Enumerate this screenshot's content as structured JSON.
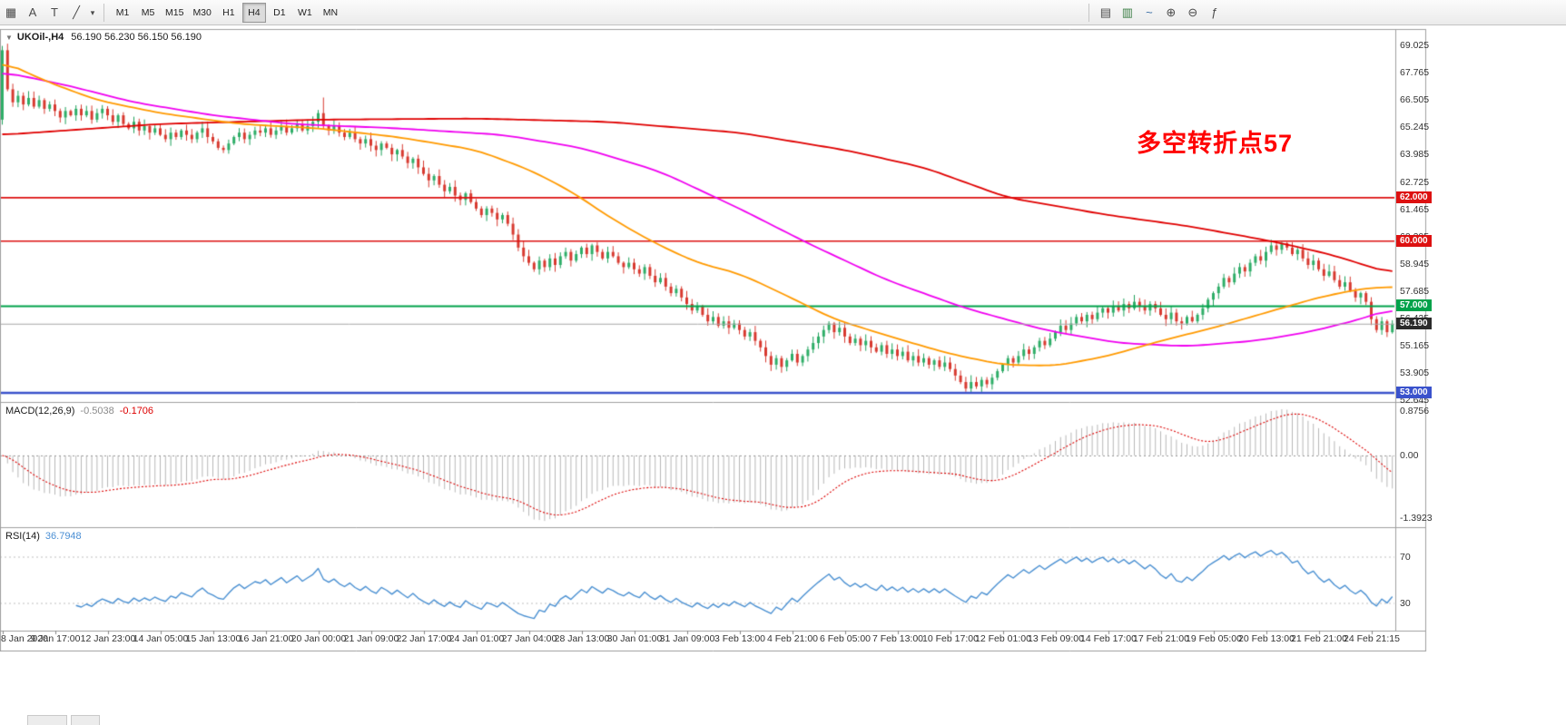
{
  "toolbar": {
    "left_icons": [
      {
        "name": "grid-icon",
        "glyph": "▦"
      },
      {
        "name": "text-tool-icon",
        "glyph": "A"
      },
      {
        "name": "text-label-tool-icon",
        "glyph": "T"
      },
      {
        "name": "drawing-tools-icon",
        "glyph": "╱"
      },
      {
        "name": "dropdown-caret-icon",
        "glyph": "▾"
      }
    ],
    "timeframes": {
      "items": [
        "M1",
        "M5",
        "M15",
        "M30",
        "H1",
        "H4",
        "D1",
        "W1",
        "MN"
      ],
      "active": "H4"
    },
    "right_icons": [
      {
        "name": "bar-chart-icon",
        "glyph": "▤",
        "color": "#4a4a4a"
      },
      {
        "name": "candlestick-chart-icon",
        "glyph": "▥",
        "color": "#3a7d44"
      },
      {
        "name": "line-chart-icon",
        "glyph": "~",
        "color": "#3a6ea5"
      },
      {
        "name": "zoom-in-icon",
        "glyph": "⊕",
        "color": "#4a4a4a"
      },
      {
        "name": "zoom-out-icon",
        "glyph": "⊖",
        "color": "#4a4a4a"
      },
      {
        "name": "indicators-icon",
        "glyph": "ƒ",
        "color": "#4a4a4a"
      }
    ]
  },
  "chart_header": {
    "collapse": "▼",
    "symbol_period": "UKOil-,H4",
    "ohlc": "56.190 56.230 56.150 56.190"
  },
  "macd_panel": {
    "title": "MACD(12,26,9)",
    "value_main": "-0.5038",
    "value_signal": "-0.1706",
    "axis_max": "0.8756",
    "axis_zero": "0.00",
    "axis_min": "-1.3923"
  },
  "rsi_panel": {
    "title": "RSI(14)",
    "value": "36.7948",
    "level_top": "70",
    "level_bottom": "30"
  },
  "chart_data": {
    "type": "candlestick",
    "symbol": "UKOil-",
    "timeframe": "H4",
    "ohlc_current": {
      "open": 56.19,
      "high": 56.23,
      "low": 56.15,
      "close": 56.19
    },
    "ylim": [
      52.645,
      69.025
    ],
    "y_tick_labels": [
      "69.025",
      "67.765",
      "66.505",
      "65.245",
      "63.985",
      "62.725",
      "61.465",
      "60.205",
      "58.945",
      "57.685",
      "56.425",
      "55.165",
      "53.905",
      "52.645"
    ],
    "x_tick_labels": [
      "8 Jan 2020",
      "9 Jan 17:00",
      "12 Jan 23:00",
      "14 Jan 05:00",
      "15 Jan 13:00",
      "16 Jan 21:00",
      "20 Jan 00:00",
      "21 Jan 09:00",
      "22 Jan 17:00",
      "24 Jan 01:00",
      "27 Jan 04:00",
      "28 Jan 13:00",
      "30 Jan 01:00",
      "31 Jan 09:00",
      "3 Feb 13:00",
      "4 Feb 21:00",
      "6 Feb 05:00",
      "7 Feb 13:00",
      "10 Feb 17:00",
      "12 Feb 01:00",
      "13 Feb 09:00",
      "14 Feb 17:00",
      "17 Feb 21:00",
      "19 Feb 05:00",
      "20 Feb 13:00",
      "21 Feb 21:00",
      "24 Feb 21:15"
    ],
    "bars_per_label": 10,
    "first_open": 65.6,
    "closes": [
      68.8,
      67.0,
      66.4,
      66.7,
      66.3,
      66.6,
      66.2,
      66.5,
      66.1,
      66.3,
      66.0,
      65.7,
      66.0,
      65.8,
      66.1,
      65.8,
      66.0,
      65.6,
      65.9,
      66.1,
      65.8,
      65.5,
      65.8,
      65.4,
      65.2,
      65.5,
      65.1,
      65.3,
      65.0,
      65.2,
      64.9,
      64.7,
      65.0,
      64.8,
      65.1,
      64.9,
      64.7,
      65.0,
      65.2,
      64.8,
      64.6,
      64.3,
      64.2,
      64.5,
      64.8,
      65.0,
      64.7,
      64.9,
      65.1,
      65.0,
      65.2,
      64.9,
      65.1,
      65.3,
      65.0,
      65.2,
      65.4,
      65.1,
      65.3,
      65.5,
      65.9,
      65.3,
      65.1,
      65.3,
      65.0,
      64.8,
      65.0,
      64.7,
      64.5,
      64.7,
      64.4,
      64.2,
      64.5,
      64.3,
      64.0,
      64.2,
      63.9,
      63.6,
      63.8,
      63.4,
      63.1,
      62.8,
      63.0,
      62.6,
      62.3,
      62.5,
      62.1,
      61.9,
      62.2,
      61.8,
      61.5,
      61.2,
      61.5,
      61.3,
      61.0,
      61.2,
      60.8,
      60.3,
      59.7,
      59.3,
      59.0,
      58.7,
      59.1,
      58.8,
      59.2,
      58.9,
      59.3,
      59.5,
      59.1,
      59.4,
      59.7,
      59.4,
      59.8,
      59.5,
      59.2,
      59.5,
      59.3,
      59.0,
      58.8,
      59.0,
      58.7,
      58.5,
      58.8,
      58.4,
      58.1,
      58.3,
      57.9,
      57.6,
      57.8,
      57.4,
      57.1,
      56.8,
      57.0,
      56.6,
      56.3,
      56.5,
      56.1,
      56.3,
      56.0,
      56.2,
      55.9,
      55.6,
      55.8,
      55.4,
      55.1,
      54.7,
      54.3,
      54.6,
      54.2,
      54.5,
      54.8,
      54.4,
      54.7,
      55.0,
      55.3,
      55.6,
      55.9,
      56.2,
      55.8,
      56.0,
      55.6,
      55.3,
      55.5,
      55.2,
      55.4,
      55.1,
      54.9,
      55.2,
      54.8,
      55.0,
      54.7,
      54.9,
      54.5,
      54.7,
      54.4,
      54.6,
      54.3,
      54.5,
      54.2,
      54.4,
      54.1,
      53.8,
      53.5,
      53.2,
      53.5,
      53.3,
      53.6,
      53.4,
      53.7,
      54.0,
      54.3,
      54.6,
      54.4,
      54.7,
      55.0,
      54.8,
      55.1,
      55.4,
      55.2,
      55.5,
      55.8,
      56.1,
      55.9,
      56.2,
      56.5,
      56.3,
      56.6,
      56.4,
      56.7,
      56.9,
      56.7,
      57.0,
      56.8,
      57.1,
      56.9,
      57.2,
      57.0,
      56.8,
      57.1,
      56.9,
      56.6,
      56.4,
      56.7,
      56.3,
      56.2,
      56.5,
      56.3,
      56.6,
      56.9,
      57.3,
      57.6,
      57.9,
      58.3,
      58.1,
      58.5,
      58.8,
      58.6,
      59.0,
      59.3,
      59.1,
      59.5,
      59.8,
      59.6,
      59.9,
      59.7,
      59.4,
      59.6,
      59.2,
      58.9,
      59.1,
      58.7,
      58.4,
      58.6,
      58.2,
      57.9,
      58.1,
      57.7,
      57.4,
      57.6,
      57.2,
      56.4,
      55.9,
      56.3,
      55.8,
      56.19
    ],
    "wick_overrides": {
      "0": {
        "h": 69.0
      },
      "61": {
        "h": 66.62
      },
      "183": {
        "l": 53.05
      },
      "243": {
        "h": 59.97
      }
    },
    "moving_averages": [
      {
        "name": "slow-red-ma",
        "color": "#e00000",
        "anchors": [
          [
            0,
            64.9
          ],
          [
            30,
            65.4
          ],
          [
            60,
            65.6
          ],
          [
            90,
            65.65
          ],
          [
            115,
            65.5
          ],
          [
            140,
            65.0
          ],
          [
            160,
            64.2
          ],
          [
            175,
            63.4
          ],
          [
            191,
            62.0
          ],
          [
            210,
            61.2
          ],
          [
            225,
            60.7
          ],
          [
            241,
            60.0
          ],
          [
            252,
            59.4
          ],
          [
            264,
            58.5
          ]
        ]
      },
      {
        "name": "mid-magenta-ma",
        "color": "#f000f0",
        "anchors": [
          [
            0,
            67.8
          ],
          [
            12,
            67.2
          ],
          [
            25,
            66.4
          ],
          [
            40,
            65.8
          ],
          [
            55,
            65.4
          ],
          [
            75,
            65.2
          ],
          [
            95,
            64.9
          ],
          [
            110,
            64.3
          ],
          [
            125,
            63.2
          ],
          [
            140,
            61.5
          ],
          [
            153,
            59.9
          ],
          [
            168,
            58.2
          ],
          [
            183,
            56.9
          ],
          [
            198,
            55.9
          ],
          [
            212,
            55.3
          ],
          [
            225,
            55.15
          ],
          [
            238,
            55.4
          ],
          [
            248,
            55.8
          ],
          [
            258,
            56.4
          ],
          [
            264,
            56.9
          ]
        ]
      },
      {
        "name": "fast-orange-ma",
        "color": "#ff9a00",
        "anchors": [
          [
            0,
            68.3
          ],
          [
            8,
            67.4
          ],
          [
            18,
            66.5
          ],
          [
            30,
            65.9
          ],
          [
            45,
            65.4
          ],
          [
            60,
            65.2
          ],
          [
            75,
            64.8
          ],
          [
            90,
            64.2
          ],
          [
            100,
            63.3
          ],
          [
            108,
            62.3
          ],
          [
            116,
            61.0
          ],
          [
            124,
            59.9
          ],
          [
            132,
            59.0
          ],
          [
            140,
            58.5
          ],
          [
            148,
            57.6
          ],
          [
            158,
            56.4
          ],
          [
            170,
            55.5
          ],
          [
            180,
            54.8
          ],
          [
            190,
            54.3
          ],
          [
            200,
            54.25
          ],
          [
            210,
            54.7
          ],
          [
            220,
            55.4
          ],
          [
            230,
            56.0
          ],
          [
            240,
            56.7
          ],
          [
            250,
            57.4
          ],
          [
            258,
            57.8
          ],
          [
            264,
            57.9
          ]
        ]
      }
    ],
    "horizontal_lines": [
      {
        "price": 62.0,
        "label": "62.000",
        "color": "#dd1111",
        "width": 1.6
      },
      {
        "price": 60.0,
        "label": "60.000",
        "color": "#dd1111",
        "width": 1.6
      },
      {
        "price": 57.0,
        "label": "57.000",
        "color": "#00a24a",
        "width": 2.0
      },
      {
        "price": 53.0,
        "label": "53.000",
        "color": "#3a52cc",
        "width": 2.4
      }
    ],
    "bid_line": {
      "price": 56.19,
      "label": "56.190",
      "color": "#2b2b2b"
    },
    "annotation": {
      "text": "多空转折点57",
      "color": "#ff0000"
    },
    "indicators": {
      "macd": {
        "fast": 12,
        "slow": 26,
        "signal": 9,
        "hist_color": "#b8b8b8",
        "signal_color": "#dd0000"
      },
      "rsi": {
        "period": 14,
        "levels": [
          70,
          30
        ],
        "line_color": "#4a90d2"
      }
    }
  }
}
